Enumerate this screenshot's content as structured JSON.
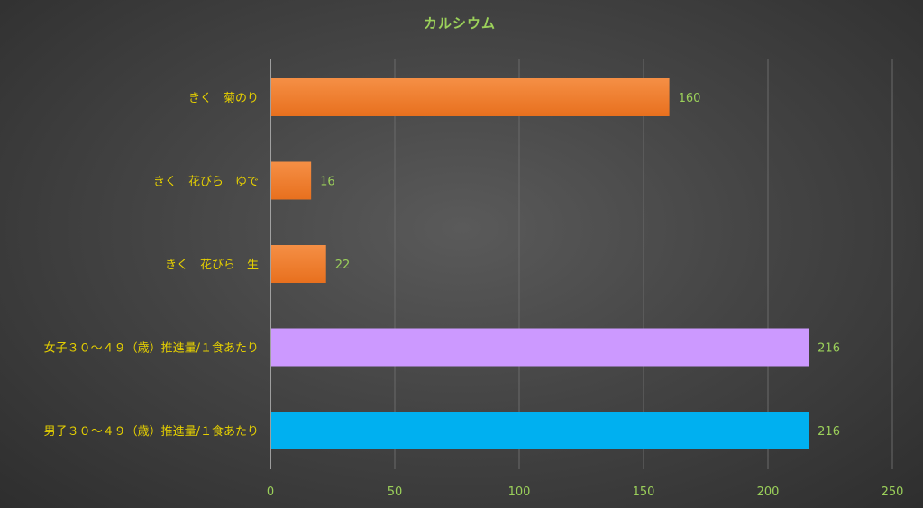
{
  "chart_data": {
    "type": "bar",
    "orientation": "horizontal",
    "title": "カルシウム",
    "categories": [
      "きく　菊のり",
      "きく　花びら　ゆで",
      "きく　花びら　生",
      "女子３０～４９（歳）推進量/１食あたり",
      "男子３０～４９（歳）推進量/１食あたり"
    ],
    "values": [
      160,
      16,
      22,
      216,
      216
    ],
    "colors": [
      "#f07a2a",
      "#f07a2a",
      "#f07a2a",
      "#cc99ff",
      "#00b0f0"
    ],
    "xlim": [
      0,
      250
    ],
    "xticks": [
      0,
      50,
      100,
      150,
      200,
      250
    ],
    "grid": true,
    "legend": "none"
  }
}
